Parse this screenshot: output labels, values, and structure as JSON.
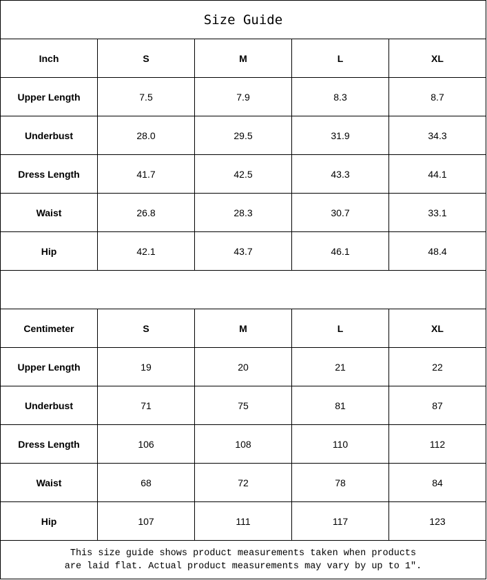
{
  "title": "Size Guide",
  "sizes": [
    "S",
    "M",
    "L",
    "XL"
  ],
  "sections": [
    {
      "unit": "Inch",
      "rows": [
        {
          "label": "Upper Length",
          "values": [
            "7.5",
            "7.9",
            "8.3",
            "8.7"
          ]
        },
        {
          "label": "Underbust",
          "values": [
            "28.0",
            "29.5",
            "31.9",
            "34.3"
          ]
        },
        {
          "label": "Dress Length",
          "values": [
            "41.7",
            "42.5",
            "43.3",
            "44.1"
          ]
        },
        {
          "label": "Waist",
          "values": [
            "26.8",
            "28.3",
            "30.7",
            "33.1"
          ]
        },
        {
          "label": "Hip",
          "values": [
            "42.1",
            "43.7",
            "46.1",
            "48.4"
          ]
        }
      ]
    },
    {
      "unit": "Centimeter",
      "rows": [
        {
          "label": "Upper Length",
          "values": [
            "19",
            "20",
            "21",
            "22"
          ]
        },
        {
          "label": "Underbust",
          "values": [
            "71",
            "75",
            "81",
            "87"
          ]
        },
        {
          "label": "Dress Length",
          "values": [
            "106",
            "108",
            "110",
            "112"
          ]
        },
        {
          "label": "Waist",
          "values": [
            "68",
            "72",
            "78",
            "84"
          ]
        },
        {
          "label": "Hip",
          "values": [
            "107",
            "111",
            "117",
            "123"
          ]
        }
      ]
    }
  ],
  "note": {
    "line1": "This size guide shows product measurements taken when products",
    "line2": "are laid flat. Actual product measurements may vary by up to 1″."
  }
}
